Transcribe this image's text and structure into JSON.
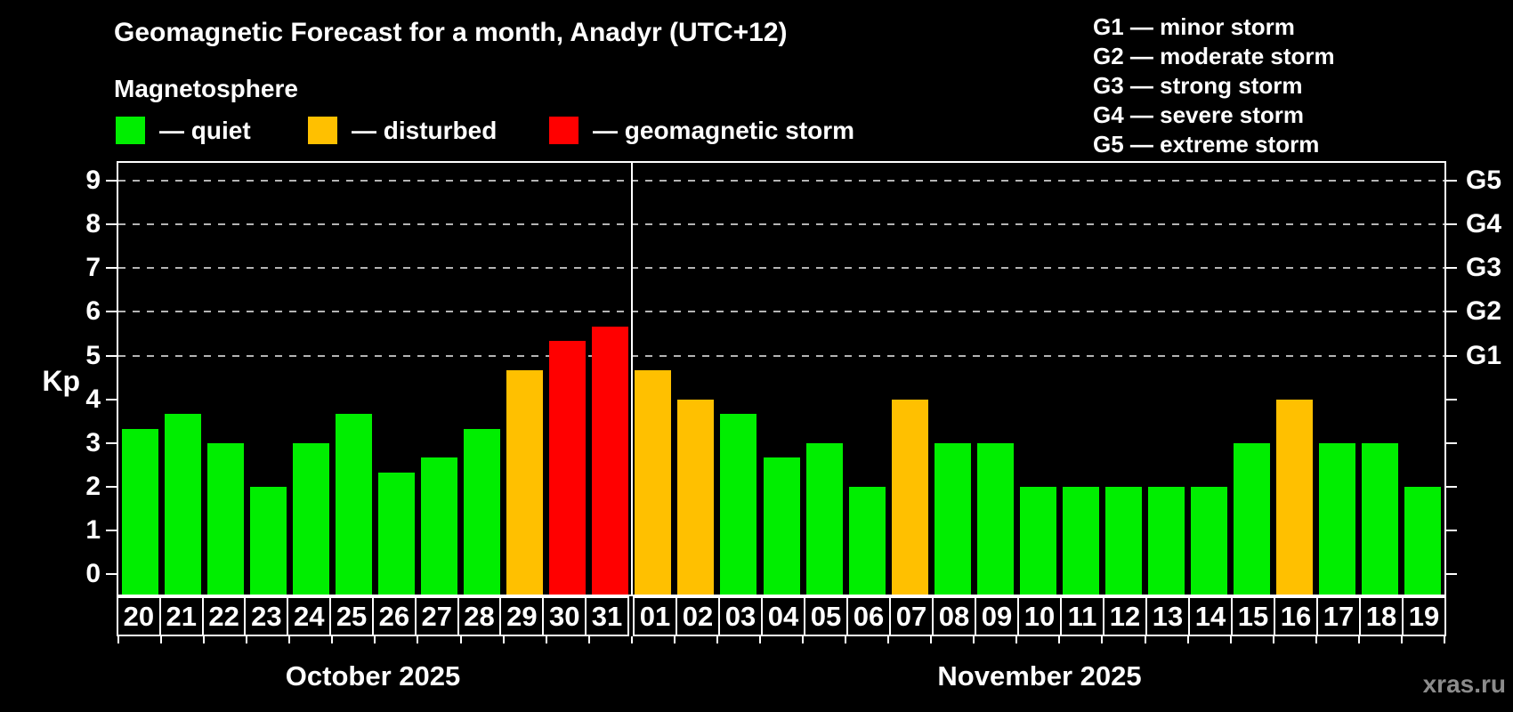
{
  "header": {
    "title": "Geomagnetic Forecast for a month, Anadyr (UTC+12)",
    "subtitle": "Magnetosphere"
  },
  "status_legend": [
    {
      "status": "quiet",
      "label": "— quiet"
    },
    {
      "status": "disturbed",
      "label": "— disturbed"
    },
    {
      "status": "storm",
      "label": "— geomagnetic storm"
    }
  ],
  "g_scale_legend": [
    "G1 — minor storm",
    "G2 — moderate storm",
    "G3 — strong storm",
    "G4 — severe storm",
    "G5 — extreme storm"
  ],
  "watermark": "xras.ru",
  "chart_data": {
    "type": "bar",
    "title": "Geomagnetic Forecast for a month, Anadyr (UTC+12)",
    "xlabel": "",
    "ylabel": "Kp",
    "ylim": [
      0,
      9
    ],
    "y_ticks": [
      0,
      1,
      2,
      3,
      4,
      5,
      6,
      7,
      8,
      9
    ],
    "grid": {
      "horizontal_dashed_at_kp": [
        5,
        6,
        7,
        8,
        9
      ]
    },
    "right_axis_labels": [
      {
        "label": "G1",
        "kp": 5
      },
      {
        "label": "G2",
        "kp": 6
      },
      {
        "label": "G3",
        "kp": 7
      },
      {
        "label": "G4",
        "kp": 8
      },
      {
        "label": "G5",
        "kp": 9
      }
    ],
    "status_colors": {
      "quiet": "#00ee00",
      "disturbed": "#ffc000",
      "storm": "#ff0000"
    },
    "background_color": "#000000",
    "legend_position": "top-left and top-right",
    "months": [
      {
        "label": "October 2025",
        "days": [
          {
            "day": "20",
            "kp": 3.33,
            "status": "quiet"
          },
          {
            "day": "21",
            "kp": 3.67,
            "status": "quiet"
          },
          {
            "day": "22",
            "kp": 3.0,
            "status": "quiet"
          },
          {
            "day": "23",
            "kp": 2.0,
            "status": "quiet"
          },
          {
            "day": "24",
            "kp": 3.0,
            "status": "quiet"
          },
          {
            "day": "25",
            "kp": 3.67,
            "status": "quiet"
          },
          {
            "day": "26",
            "kp": 2.33,
            "status": "quiet"
          },
          {
            "day": "27",
            "kp": 2.67,
            "status": "quiet"
          },
          {
            "day": "28",
            "kp": 3.33,
            "status": "quiet"
          },
          {
            "day": "29",
            "kp": 4.67,
            "status": "disturbed"
          },
          {
            "day": "30",
            "kp": 5.33,
            "status": "storm"
          },
          {
            "day": "31",
            "kp": 5.67,
            "status": "storm"
          }
        ]
      },
      {
        "label": "November 2025",
        "days": [
          {
            "day": "01",
            "kp": 4.67,
            "status": "disturbed"
          },
          {
            "day": "02",
            "kp": 4.0,
            "status": "disturbed"
          },
          {
            "day": "03",
            "kp": 3.67,
            "status": "quiet"
          },
          {
            "day": "04",
            "kp": 2.67,
            "status": "quiet"
          },
          {
            "day": "05",
            "kp": 3.0,
            "status": "quiet"
          },
          {
            "day": "06",
            "kp": 2.0,
            "status": "quiet"
          },
          {
            "day": "07",
            "kp": 4.0,
            "status": "disturbed"
          },
          {
            "day": "08",
            "kp": 3.0,
            "status": "quiet"
          },
          {
            "day": "09",
            "kp": 3.0,
            "status": "quiet"
          },
          {
            "day": "10",
            "kp": 2.0,
            "status": "quiet"
          },
          {
            "day": "11",
            "kp": 2.0,
            "status": "quiet"
          },
          {
            "day": "12",
            "kp": 2.0,
            "status": "quiet"
          },
          {
            "day": "13",
            "kp": 2.0,
            "status": "quiet"
          },
          {
            "day": "14",
            "kp": 2.0,
            "status": "quiet"
          },
          {
            "day": "15",
            "kp": 3.0,
            "status": "quiet"
          },
          {
            "day": "16",
            "kp": 4.0,
            "status": "disturbed"
          },
          {
            "day": "17",
            "kp": 3.0,
            "status": "quiet"
          },
          {
            "day": "18",
            "kp": 3.0,
            "status": "quiet"
          },
          {
            "day": "19",
            "kp": 2.0,
            "status": "quiet"
          }
        ]
      }
    ]
  }
}
